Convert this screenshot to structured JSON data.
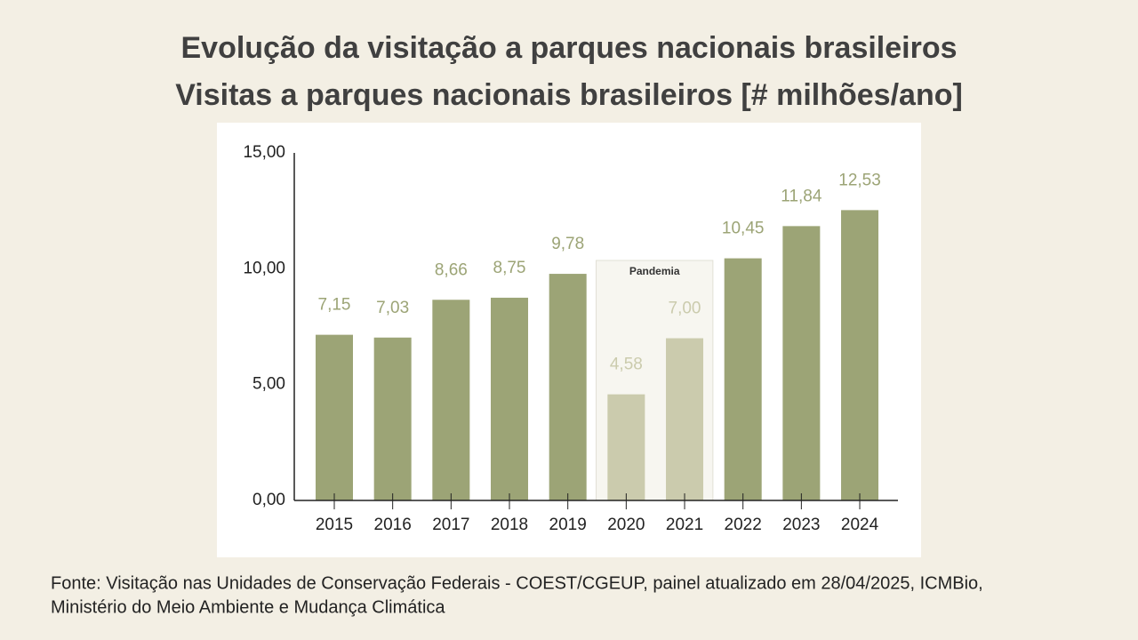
{
  "chart_data": {
    "type": "bar",
    "title": "Evolução da visitação a parques nacionais brasileiros",
    "subtitle": "Visitas a parques nacionais brasileiros [# milhões/ano]",
    "categories": [
      "2015",
      "2016",
      "2017",
      "2018",
      "2019",
      "2020",
      "2021",
      "2022",
      "2023",
      "2024"
    ],
    "values": [
      7.15,
      7.03,
      8.66,
      8.75,
      9.78,
      4.58,
      7.0,
      10.45,
      11.84,
      12.53
    ],
    "value_labels": [
      "7,15",
      "7,03",
      "8,66",
      "8,75",
      "9,78",
      "4,58",
      "7,00",
      "10,45",
      "11,84",
      "12,53"
    ],
    "colors": [
      "#9ca476",
      "#9ca476",
      "#9ca476",
      "#9ca476",
      "#9ca476",
      "#cbcbad",
      "#cbcbad",
      "#9ca476",
      "#9ca476",
      "#9ca476"
    ],
    "ylim": [
      0,
      15
    ],
    "yticks": [
      {
        "value": 0,
        "label": "0,00"
      },
      {
        "value": 5,
        "label": "5,00"
      },
      {
        "value": 10,
        "label": "10,00"
      },
      {
        "value": 15,
        "label": "15,00"
      }
    ],
    "grid": false,
    "annotations": [
      {
        "text": "Pandemia",
        "start": "2020",
        "end": "2021"
      }
    ]
  },
  "footer": {
    "lines": [
      "Fonte: Visitação nas Unidades de Conservação Federais - COEST/CGEUP, painel atualizado em 28/04/2025, ICMBio,",
      "Ministério do Meio Ambiente e Mudança Climática"
    ]
  }
}
